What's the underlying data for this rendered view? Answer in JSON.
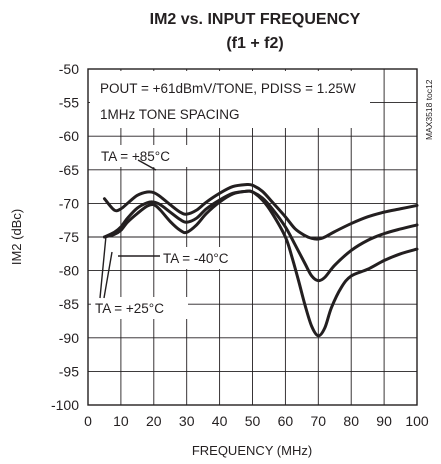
{
  "chart_data": {
    "type": "line",
    "title": "IM2 vs. INPUT FREQUENCY",
    "subtitle": "(f1 + f2)",
    "xlabel": "FREQUENCY (MHz)",
    "ylabel": "IM2 (dBc)",
    "xlim": [
      0,
      100
    ],
    "ylim": [
      -100,
      -50
    ],
    "xticks": [
      "0",
      "10",
      "20",
      "30",
      "40",
      "50",
      "60",
      "70",
      "80",
      "90",
      "100"
    ],
    "yticks": [
      "-50",
      "-55",
      "-60",
      "-65",
      "-70",
      "-75",
      "-80",
      "-85",
      "-90",
      "-95",
      "-100"
    ],
    "grid": true,
    "conditions": [
      "POUT = +61dBmV/TONE, PDISS = 1.25W",
      "1MHz TONE SPACING"
    ],
    "side_label": "MAX3518 toc12",
    "annotations": [
      "TA = +85°C",
      "TA = -40°C",
      "TA = +25°C"
    ],
    "series": [
      {
        "name": "TA = +85°C",
        "x": [
          5,
          8,
          10,
          12,
          15,
          18,
          20,
          22,
          25,
          28,
          30,
          33,
          36,
          40,
          44,
          48,
          50,
          53,
          56,
          60,
          63,
          66,
          68,
          70,
          72,
          75,
          80,
          85,
          90,
          95,
          100
        ],
        "y": [
          -69.3,
          -71,
          -70.8,
          -70,
          -68.8,
          -68.3,
          -68.4,
          -69,
          -70.2,
          -71.3,
          -71.6,
          -71,
          -69.8,
          -68.5,
          -67.5,
          -67.2,
          -67.3,
          -68.2,
          -69.8,
          -72,
          -73.8,
          -74.8,
          -75.2,
          -75.3,
          -75,
          -74.2,
          -73,
          -72,
          -71.3,
          -70.8,
          -70.3
        ]
      },
      {
        "name": "TA = -40°C",
        "x": [
          5,
          8,
          10,
          12,
          15,
          18,
          20,
          22,
          25,
          28,
          30,
          33,
          36,
          40,
          44,
          48,
          50,
          53,
          56,
          60,
          63,
          66,
          68,
          70,
          72,
          75,
          80,
          85,
          90,
          95,
          100
        ],
        "y": [
          -75,
          -74.3,
          -73.5,
          -72.2,
          -70.7,
          -69.9,
          -69.8,
          -70.2,
          -71.3,
          -72.4,
          -72.8,
          -72.2,
          -70.8,
          -69.5,
          -68.5,
          -68.2,
          -68.3,
          -69.2,
          -70.8,
          -73.5,
          -76.2,
          -79,
          -80.8,
          -81.5,
          -81,
          -79.2,
          -77,
          -75.5,
          -74.5,
          -73.8,
          -73.2
        ]
      },
      {
        "name": "TA = +25°C",
        "x": [
          5,
          8,
          10,
          12,
          15,
          18,
          20,
          22,
          25,
          28,
          30,
          33,
          36,
          40,
          44,
          48,
          50,
          53,
          56,
          60,
          62,
          64,
          66,
          68,
          70,
          72,
          74,
          77,
          80,
          85,
          90,
          95,
          100
        ],
        "y": [
          -75,
          -74.6,
          -74,
          -72.8,
          -71.5,
          -70.4,
          -70.2,
          -71,
          -72.7,
          -74,
          -74.3,
          -73.2,
          -71.5,
          -69.8,
          -68.6,
          -68.2,
          -68.3,
          -69.5,
          -71.5,
          -75,
          -78,
          -81.5,
          -85.2,
          -88.3,
          -89.7,
          -88.5,
          -85.5,
          -82.5,
          -80.8,
          -79.8,
          -78.5,
          -77.5,
          -76.8
        ]
      }
    ]
  }
}
